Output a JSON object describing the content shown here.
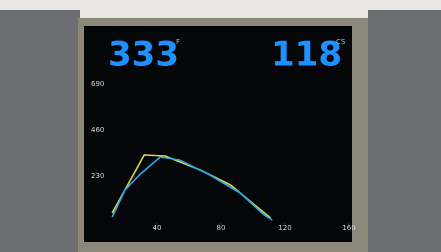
{
  "chart_data": {
    "type": "line",
    "readouts": [
      {
        "value": "333",
        "unit": "F"
      },
      {
        "value": "118",
        "unit": "CS"
      }
    ],
    "xlim": [
      0,
      160
    ],
    "xticks": [
      40,
      80,
      120,
      160
    ],
    "ylim": [
      0,
      690
    ],
    "yticks": [
      230,
      460,
      690
    ],
    "series": [
      {
        "color": "#d8d84a",
        "x": [
          12,
          32,
          45,
          67,
          86,
          101,
          111
        ],
        "values": [
          50,
          340,
          335,
          265,
          190,
          90,
          25
        ]
      },
      {
        "color": "#2aa8e8",
        "x": [
          12,
          20,
          29,
          42,
          54,
          73,
          92,
          107,
          112
        ],
        "values": [
          30,
          165,
          240,
          330,
          315,
          240,
          150,
          40,
          15
        ]
      }
    ]
  }
}
